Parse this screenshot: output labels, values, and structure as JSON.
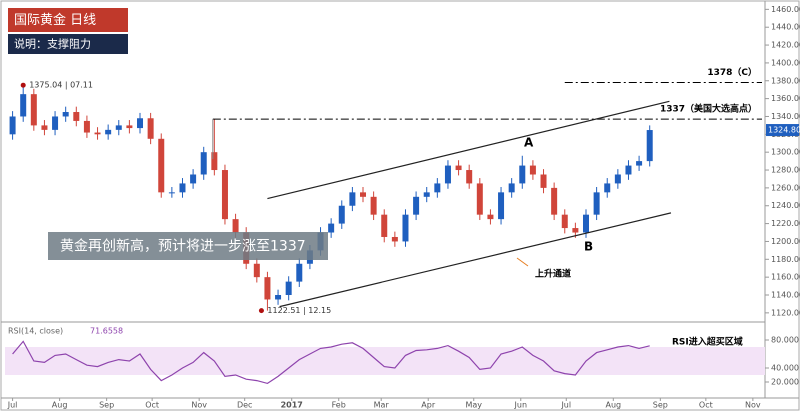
{
  "chart_data": [
    {
      "type": "candlestick",
      "title": "国际黄金 日线",
      "subtitle": "说明：支撑阻力",
      "x": [
        0,
        7,
        14,
        21,
        28,
        35,
        42,
        49,
        56,
        63,
        70,
        77,
        84,
        91,
        98,
        105,
        112,
        119,
        126,
        133,
        140,
        147,
        154,
        161,
        168,
        175,
        182,
        189,
        196,
        203,
        210,
        217,
        224,
        231,
        238,
        245,
        252,
        259,
        266,
        273,
        280,
        287,
        294,
        301,
        308,
        315,
        322,
        329,
        336,
        343,
        350,
        357,
        364,
        371,
        378,
        385,
        392,
        399,
        406,
        413,
        420
      ],
      "open": [
        1320,
        1340,
        1365,
        1330,
        1325,
        1340,
        1345,
        1335,
        1322,
        1320,
        1325,
        1330,
        1327,
        1338,
        1315,
        1255,
        1255,
        1265,
        1275,
        1300,
        1280,
        1225,
        1210,
        1175,
        1160,
        1135,
        1140,
        1155,
        1175,
        1190,
        1210,
        1220,
        1240,
        1255,
        1250,
        1230,
        1205,
        1200,
        1230,
        1250,
        1255,
        1265,
        1285,
        1280,
        1265,
        1230,
        1225,
        1255,
        1265,
        1285,
        1275,
        1260,
        1230,
        1215,
        1210,
        1230,
        1255,
        1265,
        1275,
        1285,
        1290
      ],
      "high": [
        1346,
        1375.04,
        1371,
        1336,
        1346,
        1351,
        1351,
        1341,
        1328,
        1331,
        1336,
        1336,
        1344,
        1344,
        1321,
        1261,
        1271,
        1281,
        1306,
        1337,
        1286,
        1231,
        1216,
        1181,
        1166,
        1146,
        1161,
        1181,
        1196,
        1216,
        1226,
        1246,
        1261,
        1261,
        1256,
        1236,
        1211,
        1236,
        1256,
        1261,
        1271,
        1291,
        1291,
        1286,
        1271,
        1236,
        1261,
        1271,
        1296,
        1291,
        1281,
        1266,
        1236,
        1221,
        1236,
        1261,
        1271,
        1281,
        1291,
        1296,
        1330
      ],
      "low": [
        1314,
        1334,
        1324,
        1319,
        1319,
        1334,
        1329,
        1316,
        1314,
        1314,
        1319,
        1321,
        1321,
        1309,
        1249,
        1249,
        1249,
        1259,
        1269,
        1274,
        1219,
        1204,
        1169,
        1154,
        1122.51,
        1129,
        1134,
        1149,
        1169,
        1184,
        1204,
        1214,
        1234,
        1244,
        1224,
        1199,
        1194,
        1194,
        1224,
        1244,
        1249,
        1259,
        1274,
        1259,
        1224,
        1219,
        1219,
        1249,
        1259,
        1269,
        1254,
        1224,
        1209,
        1204,
        1204,
        1224,
        1249,
        1259,
        1269,
        1279,
        1284
      ],
      "close": [
        1340,
        1365,
        1330,
        1325,
        1340,
        1345,
        1335,
        1322,
        1320,
        1325,
        1330,
        1327,
        1338,
        1315,
        1255,
        1255,
        1265,
        1275,
        1300,
        1280,
        1225,
        1210,
        1175,
        1160,
        1135,
        1140,
        1155,
        1175,
        1190,
        1210,
        1220,
        1240,
        1255,
        1250,
        1230,
        1205,
        1200,
        1230,
        1250,
        1255,
        1265,
        1285,
        1280,
        1265,
        1230,
        1225,
        1255,
        1265,
        1285,
        1275,
        1260,
        1230,
        1215,
        1210,
        1230,
        1255,
        1265,
        1275,
        1285,
        1290,
        1324.8
      ],
      "up_color": "#1f5fbf",
      "down_color": "#d0453a",
      "xlim": [
        -5,
        496
      ],
      "xticks": [
        {
          "value": 0,
          "label": "Jul"
        },
        {
          "value": 31,
          "label": "Aug"
        },
        {
          "value": 62,
          "label": "Sep"
        },
        {
          "value": 92,
          "label": "Oct"
        },
        {
          "value": 123,
          "label": "Nov"
        },
        {
          "value": 153,
          "label": "Dec"
        },
        {
          "value": 184,
          "label": "2017"
        },
        {
          "value": 215,
          "label": "Feb"
        },
        {
          "value": 243,
          "label": "Mar"
        },
        {
          "value": 274,
          "label": "Apr"
        },
        {
          "value": 304,
          "label": "May"
        },
        {
          "value": 335,
          "label": "Jun"
        },
        {
          "value": 365,
          "label": "Jul"
        },
        {
          "value": 396,
          "label": "Aug"
        },
        {
          "value": 427,
          "label": "Sep"
        },
        {
          "value": 457,
          "label": "Oct"
        },
        {
          "value": 488,
          "label": "Nov"
        }
      ],
      "ylim": [
        1112,
        1466
      ],
      "yticks": [
        {
          "value": 1120,
          "label": "1120.00"
        },
        {
          "value": 1140,
          "label": "1140.00"
        },
        {
          "value": 1160,
          "label": "1160.00"
        },
        {
          "value": 1180,
          "label": "1180.00"
        },
        {
          "value": 1200,
          "label": "1200.00"
        },
        {
          "value": 1220,
          "label": "1220.00"
        },
        {
          "value": 1240,
          "label": "1240.00"
        },
        {
          "value": 1260,
          "label": "1260.00"
        },
        {
          "value": 1280,
          "label": "1280.00"
        },
        {
          "value": 1300,
          "label": "1300.00"
        },
        {
          "value": 1320,
          "label": "1320.00"
        },
        {
          "value": 1340,
          "label": "1340.00"
        },
        {
          "value": 1360,
          "label": "1360.00"
        },
        {
          "value": 1380,
          "label": "1380.00"
        },
        {
          "value": 1400,
          "label": "1400.00"
        },
        {
          "value": 1420,
          "label": "1420.00"
        },
        {
          "value": 1440,
          "label": "1440.00"
        },
        {
          "value": 1460,
          "label": "1460.00"
        }
      ],
      "last_price": {
        "value": 1324.8,
        "label": "1324.80"
      },
      "high_marker": {
        "label": "1375.04 | 07.11"
      },
      "low_marker": {
        "label": "1122.51 | 12.15"
      },
      "levels": [
        {
          "value": 1337,
          "label": "1337（美国大选高点）",
          "from": 132
        },
        {
          "value": 1378,
          "label": "1378（C）",
          "from": 364
        }
      ],
      "channel": {
        "upper": {
          "x": [
            168,
            433
          ],
          "y": [
            1248,
            1357
          ]
        },
        "lower": {
          "x": [
            176,
            434
          ],
          "y": [
            1127,
            1232
          ]
        },
        "label": "上升通道"
      },
      "points": [
        {
          "label": "A"
        },
        {
          "label": "B"
        }
      ],
      "callout": "黄金再创新高，预计将进一步涨至1337"
    },
    {
      "type": "line",
      "title": "RSI(14, close)",
      "value_label": "71.6558",
      "color": "#8e44ad",
      "band_color": "#f3e3f7",
      "annotation": "RSI进入超买区域",
      "x": [
        0,
        7,
        14,
        21,
        28,
        35,
        42,
        49,
        56,
        63,
        70,
        77,
        84,
        91,
        98,
        105,
        112,
        119,
        126,
        133,
        140,
        147,
        154,
        161,
        168,
        175,
        182,
        189,
        196,
        203,
        210,
        217,
        224,
        231,
        238,
        245,
        252,
        259,
        266,
        273,
        280,
        287,
        294,
        301,
        308,
        315,
        322,
        329,
        336,
        343,
        350,
        357,
        364,
        371,
        378,
        385,
        392,
        399,
        406,
        413,
        420
      ],
      "values": [
        60,
        78,
        50,
        48,
        58,
        60,
        52,
        44,
        42,
        48,
        52,
        50,
        60,
        38,
        22,
        30,
        40,
        48,
        62,
        50,
        28,
        30,
        24,
        22,
        18,
        28,
        40,
        52,
        60,
        68,
        70,
        74,
        76,
        68,
        55,
        42,
        40,
        58,
        65,
        66,
        68,
        72,
        64,
        55,
        38,
        40,
        60,
        64,
        70,
        58,
        50,
        36,
        32,
        30,
        50,
        62,
        66,
        70,
        72,
        68,
        71.6558
      ],
      "ylim": [
        0,
        100
      ],
      "band": [
        30,
        70
      ],
      "yticks": [
        {
          "value": 80,
          "label": "80.000"
        },
        {
          "value": 40,
          "label": "40.000"
        },
        {
          "value": 20,
          "label": "20.000"
        }
      ]
    }
  ]
}
